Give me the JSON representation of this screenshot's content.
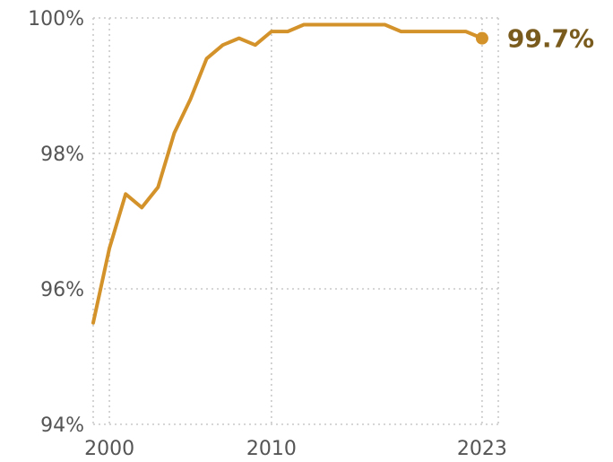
{
  "colors": {
    "series": "#d4922a",
    "end_label": "#7a5b1e",
    "grid": "#c9c9c9",
    "tick_text": "#555555"
  },
  "chart_data": {
    "type": "line",
    "title": "",
    "xlabel": "",
    "ylabel": "",
    "grid": true,
    "xlim": [
      1999,
      2024
    ],
    "ylim": [
      94,
      100
    ],
    "x_ticks": [
      2000,
      2010,
      2023
    ],
    "x_tick_labels": [
      "2000",
      "2010",
      "2023"
    ],
    "y_ticks": [
      94,
      96,
      98,
      100
    ],
    "y_tick_labels": [
      "94%",
      "96%",
      "98%",
      "100%"
    ],
    "series": [
      {
        "x": [
          1999,
          2000,
          2001,
          2002,
          2003,
          2004,
          2005,
          2006,
          2007,
          2008,
          2009,
          2010,
          2011,
          2012,
          2013,
          2014,
          2015,
          2016,
          2017,
          2018,
          2019,
          2020,
          2021,
          2022,
          2023
        ],
        "values": [
          95.5,
          96.6,
          97.4,
          97.2,
          97.5,
          98.3,
          98.8,
          99.4,
          99.6,
          99.7,
          99.6,
          99.8,
          99.8,
          99.9,
          99.9,
          99.9,
          99.9,
          99.9,
          99.9,
          99.8,
          99.8,
          99.8,
          99.8,
          99.8,
          99.7
        ]
      }
    ],
    "end_label": "99.7%"
  }
}
